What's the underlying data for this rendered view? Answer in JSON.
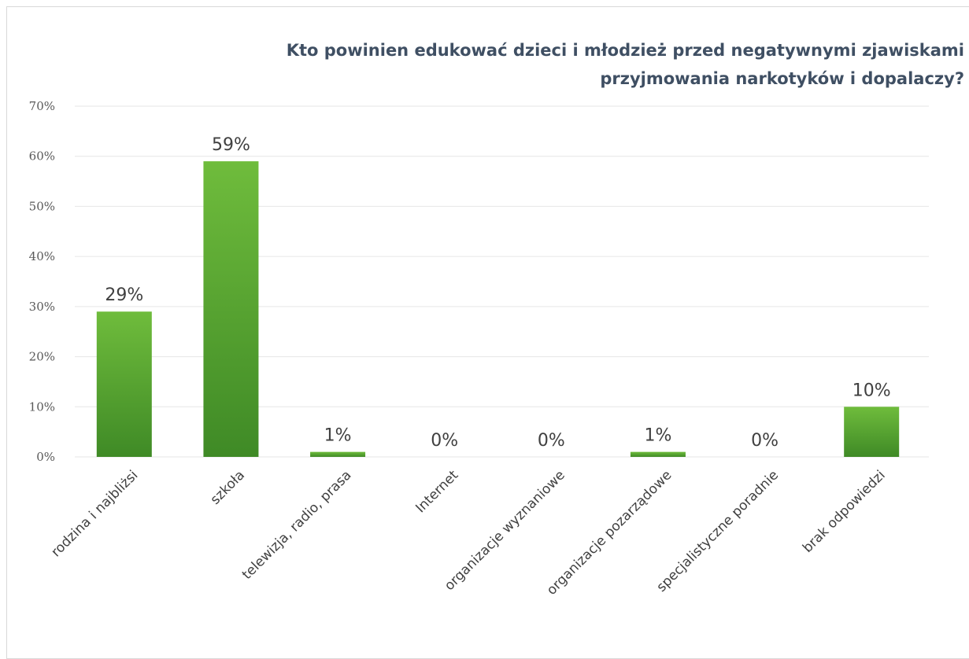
{
  "chart_data": {
    "type": "bar",
    "title": "Kto powinien edukować dzieci i młodzież przed negatywnymi zjawiskami przyjmowania narkotyków i dopalaczy?",
    "title_lines": [
      "Kto powinien edukować dzieci i młodzież przed negatywnymi zjawiskami",
      "przyjmowania narkotyków i dopalaczy?"
    ],
    "categories": [
      "rodzina i najbliżsi",
      "szkoła",
      "telewizja, radio, prasa",
      "Internet",
      "organizacje wyznaniowe",
      "organizacje pozarządowe",
      "specjalistyczne poradnie",
      "brak odpowiedzi"
    ],
    "values": [
      29,
      59,
      1,
      0,
      0,
      1,
      0,
      10
    ],
    "data_labels": [
      "29%",
      "59%",
      "1%",
      "0%",
      "0%",
      "1%",
      "0%",
      "10%"
    ],
    "yticks": [
      "0%",
      "10%",
      "20%",
      "30%",
      "40%",
      "50%",
      "60%",
      "70%"
    ],
    "ylim": [
      0,
      70
    ],
    "grid": true,
    "legend": "none",
    "colors": {
      "bar_top": "#6fbc3c",
      "bar_bottom": "#3f8a26",
      "grid": "#e6e6e6",
      "title": "#3f4f63"
    }
  }
}
